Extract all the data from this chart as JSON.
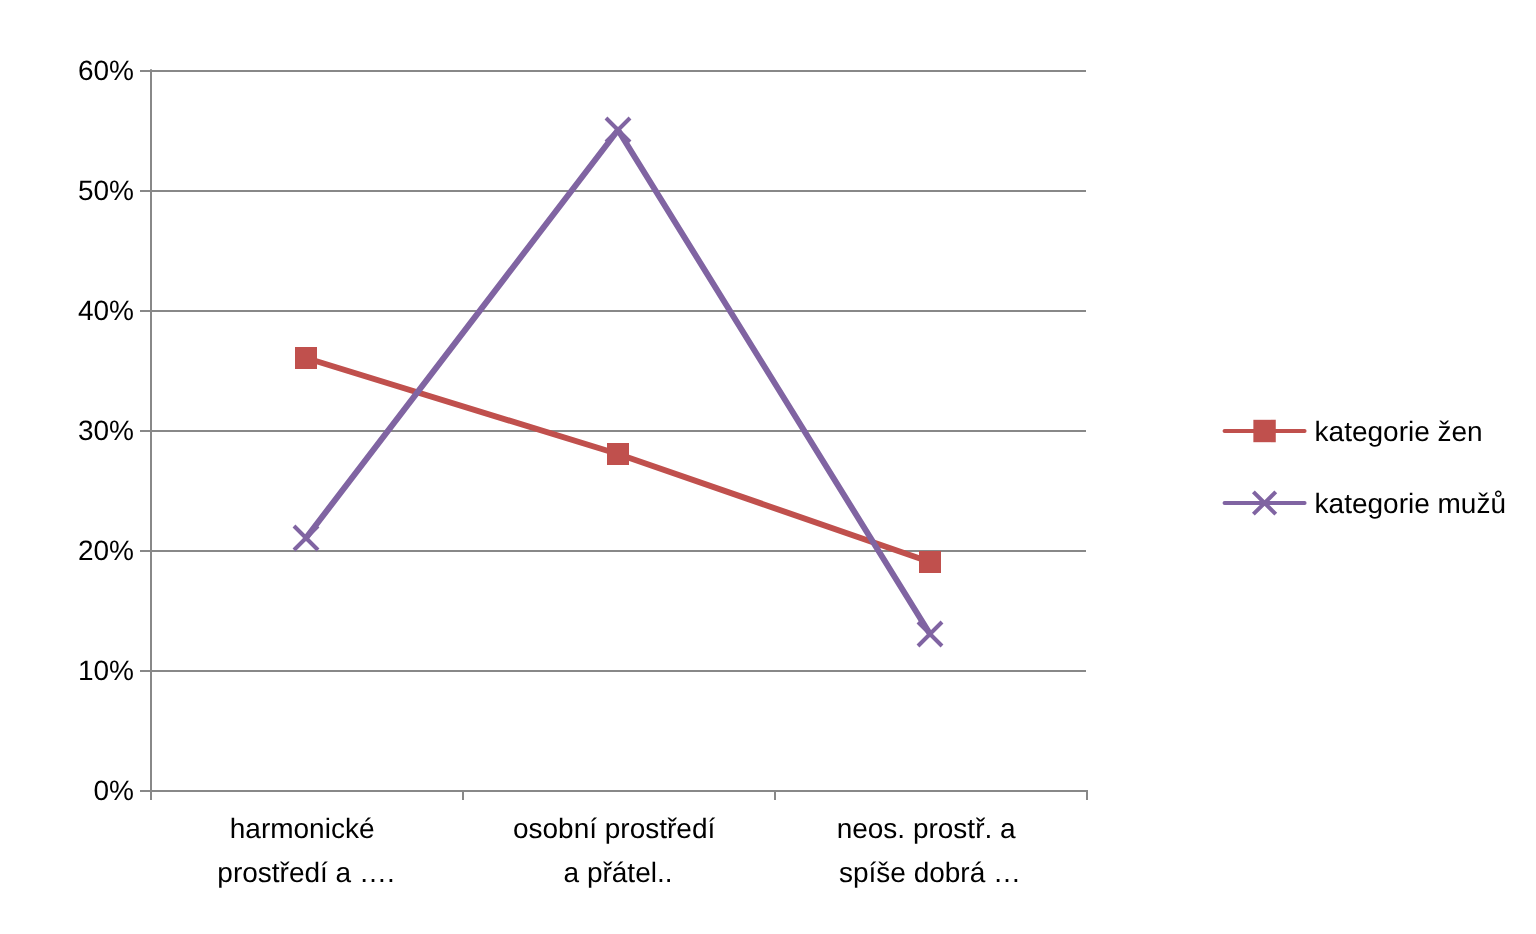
{
  "chart_data": {
    "type": "line",
    "categories": [
      "harmonické prostředí a ….",
      "osobní prostředí a přátel..",
      "neos. prostř. a spíše dobrá …"
    ],
    "series": [
      {
        "name": "kategorie žen",
        "color": "#c0504d",
        "marker": "square",
        "values": [
          36,
          28,
          19
        ]
      },
      {
        "name": "kategorie mužů",
        "color": "#8064a2",
        "marker": "cross",
        "values": [
          21,
          55,
          13
        ]
      }
    ],
    "ylim": [
      0,
      60
    ],
    "yticks": [
      {
        "value": 0,
        "label": "0%"
      },
      {
        "value": 10,
        "label": "10%"
      },
      {
        "value": 20,
        "label": "20%"
      },
      {
        "value": 30,
        "label": "30%"
      },
      {
        "value": 40,
        "label": "40%"
      },
      {
        "value": 50,
        "label": "50%"
      },
      {
        "value": 60,
        "label": "60%"
      }
    ],
    "grid": "y",
    "legend": "right",
    "line_style": "solid"
  }
}
